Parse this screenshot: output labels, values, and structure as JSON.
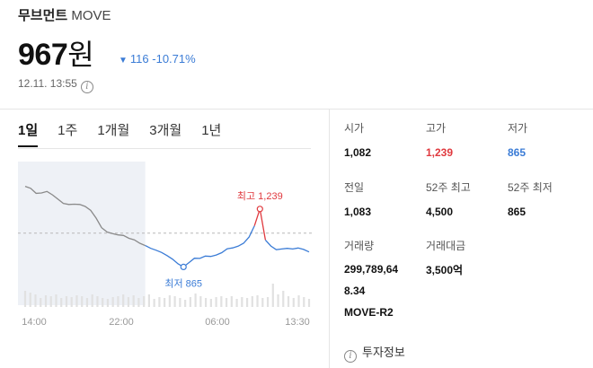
{
  "coin": {
    "name_ko": "무브먼트",
    "symbol": "MOVE"
  },
  "price": {
    "value": "967",
    "unit": "원",
    "change": "116",
    "change_pct": "-10.71%",
    "direction": "down"
  },
  "timestamp": "12.11. 13:55",
  "tabs": [
    {
      "label": "1일",
      "active": true
    },
    {
      "label": "1주",
      "active": false
    },
    {
      "label": "1개월",
      "active": false
    },
    {
      "label": "3개월",
      "active": false
    },
    {
      "label": "1년",
      "active": false
    }
  ],
  "stats": {
    "open_label": "시가",
    "open": "1,082",
    "high_label": "고가",
    "high": "1,239",
    "low_label": "저가",
    "low": "865",
    "prev_label": "전일",
    "prev": "1,083",
    "high52_label": "52주 최고",
    "high52": "4,500",
    "low52_label": "52주 최저",
    "low52": "865",
    "volume_label": "거래량",
    "volume_line1": "299,789,64",
    "volume_line2": "8.34",
    "volume_line3": "MOVE-R2",
    "amount_label": "거래대금",
    "amount": "3,500억"
  },
  "invest_info_label": "투자정보",
  "colors": {
    "up": "#e0393e",
    "down": "#3b7cd6",
    "line_before": "#8a8a8a",
    "shade": "#eef1f6"
  },
  "chart_data": {
    "type": "line",
    "x_ticks": [
      "14:00",
      "22:00",
      "06:00",
      "13:30"
    ],
    "prev_close": 1083,
    "annotations": {
      "high_label": "최고 1,239",
      "low_label": "최저 865",
      "high_value": 1239,
      "low_value": 865
    },
    "series": [
      {
        "segment": "before",
        "values": [
          1385,
          1372,
          1340,
          1342,
          1352,
          1330,
          1302,
          1275,
          1268,
          1270,
          1268,
          1255,
          1230,
          1180,
          1118,
          1090,
          1080,
          1072,
          1068,
          1050,
          1040,
          1018,
          1003
        ]
      },
      {
        "segment": "after",
        "values": [
          1003,
          985,
          973,
          958,
          938,
          915,
          885,
          865,
          893,
          921,
          920,
          935,
          933,
          942,
          957,
          982,
          988,
          999,
          1018,
          1058,
          1130,
          1239,
          1039,
          1000,
          976,
          981,
          985,
          981,
          987,
          978,
          962
        ]
      }
    ],
    "volume": [
      18,
      16,
      14,
      10,
      13,
      12,
      14,
      10,
      12,
      11,
      13,
      12,
      10,
      14,
      12,
      10,
      9,
      11,
      12,
      14,
      11,
      13,
      10,
      12,
      14,
      9,
      11,
      10,
      13,
      12,
      10,
      8,
      11,
      15,
      12,
      10,
      9,
      11,
      12,
      10,
      12,
      9,
      11,
      10,
      12,
      13,
      10,
      11,
      26,
      14,
      18,
      12,
      10,
      13,
      11,
      9
    ]
  }
}
